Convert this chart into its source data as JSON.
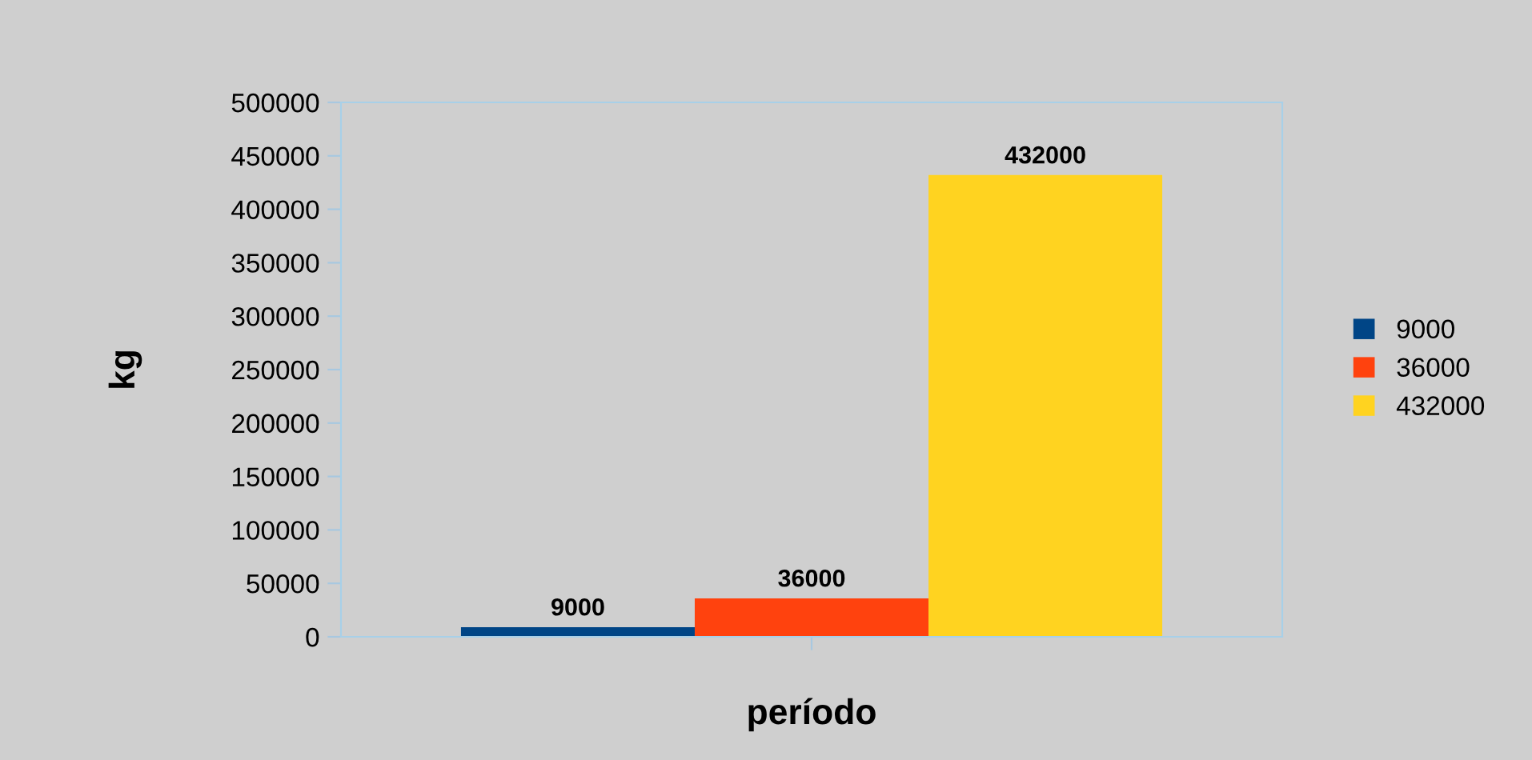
{
  "chart_data": {
    "type": "bar",
    "xlabel": "período",
    "ylabel": "kg",
    "categories": [
      null
    ],
    "series": [
      {
        "name": "9000",
        "color": "#004586",
        "values": [
          9000
        ]
      },
      {
        "name": "36000",
        "color": "#ff420e",
        "values": [
          36000
        ]
      },
      {
        "name": "432000",
        "color": "#ffd320",
        "values": [
          432000
        ]
      }
    ],
    "ylim": [
      0,
      500000
    ],
    "yticks": [
      0,
      50000,
      100000,
      150000,
      200000,
      250000,
      300000,
      350000,
      400000,
      450000,
      500000
    ],
    "data_labels": true,
    "legend": "right",
    "grid": false
  }
}
